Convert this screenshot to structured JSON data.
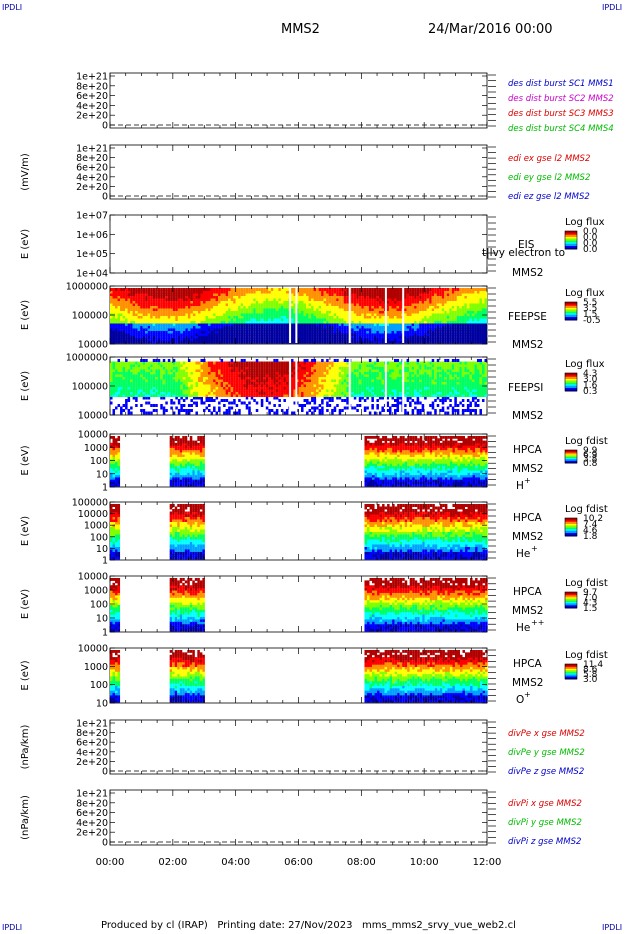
{
  "corner_marks": {
    "top_left": "IPDLI",
    "top_right": "IPDLI",
    "bottom_left": "IPDLI",
    "bottom_right": "IPDLI"
  },
  "header": {
    "title": "MMS2",
    "date": "24/Mar/2016 00:00"
  },
  "footer": {
    "text": "Produced by cl (IRAP)   Printing date: 27/Nov/2023   mms_mms2_srvy_vue_web2.cl"
  },
  "x_axis": {
    "ticks": [
      "00:00",
      "02:00",
      "04:00",
      "06:00",
      "08:00",
      "10:00",
      "12:00"
    ]
  },
  "panels": [
    {
      "id": "des-dist",
      "ylabel": "",
      "yticks": [
        "1e+21",
        "8e+20",
        "6e+20",
        "4e+20",
        "2e+20",
        "0"
      ],
      "legend": [
        {
          "text": "des dist burst SC1 MMS1",
          "color": "#0000cc"
        },
        {
          "text": "des dist burst SC2 MMS2",
          "color": "#cc00cc"
        },
        {
          "text": "des dist burst SC3 MMS3",
          "color": "#dd0000"
        },
        {
          "text": "des dist burst SC4 MMS4",
          "color": "#00bb00"
        }
      ]
    },
    {
      "id": "edi",
      "ylabel": "(mV/m)",
      "yticks": [
        "1e+21",
        "8e+20",
        "6e+20",
        "4e+20",
        "2e+20",
        "0"
      ],
      "legend": [
        {
          "text": "edi ex gse l2 MMS2",
          "color": "#dd0000"
        },
        {
          "text": "edi ey gse l2 MMS2",
          "color": "#00bb00"
        },
        {
          "text": "edi ez gse l2 MMS2",
          "color": "#0000cc"
        }
      ]
    },
    {
      "id": "eis",
      "ylabel": "E (eV)",
      "yticks": [
        "1e+07",
        "1e+06",
        "1e+05",
        "1e+04"
      ],
      "instrument": "EIS",
      "spacecraft": "MMS2",
      "extra": "t|lvy electron to",
      "colorbar": {
        "title": "Log flux",
        "ticks": [
          "0.0",
          "0.0",
          "0.0",
          "0.0"
        ]
      }
    },
    {
      "id": "feepse",
      "ylabel": "E (eV)",
      "yticks": [
        "1000000",
        "100000",
        "10000"
      ],
      "instrument": "FEEPSE",
      "spacecraft": "MMS2",
      "colorbar": {
        "title": "Log flux",
        "ticks": [
          "5.5",
          "3.5",
          "1.5",
          "-0.5"
        ]
      }
    },
    {
      "id": "feepsi",
      "ylabel": "E (eV)",
      "yticks": [
        "1000000",
        "100000",
        "10000"
      ],
      "instrument": "FEEPSI",
      "spacecraft": "MMS2",
      "colorbar": {
        "title": "Log flux",
        "ticks": [
          "4.3",
          "3.0",
          "1.6",
          "0.3"
        ]
      }
    },
    {
      "id": "hpca-h",
      "ylabel": "E (eV)",
      "yticks": [
        "10000",
        "1000",
        "100",
        "10",
        "1"
      ],
      "instrument": "HPCA",
      "spacecraft": "MMS2",
      "species": "H",
      "charge": "+",
      "colorbar": {
        "title": "Log fdist",
        "ticks": [
          "9.9",
          "6.9",
          "3.8",
          "0.8"
        ]
      }
    },
    {
      "id": "hpca-he",
      "ylabel": "E (eV)",
      "yticks": [
        "100000",
        "10000",
        "1000",
        "100",
        "10",
        "1"
      ],
      "instrument": "HPCA",
      "spacecraft": "MMS2",
      "species": "He",
      "charge": "+",
      "colorbar": {
        "title": "Log fdist",
        "ticks": [
          "10.2",
          "7.4",
          "4.6",
          "1.8"
        ]
      }
    },
    {
      "id": "hpca-he2",
      "ylabel": "E (eV)",
      "yticks": [
        "10000",
        "1000",
        "100",
        "10",
        "1"
      ],
      "instrument": "HPCA",
      "spacecraft": "MMS2",
      "species": "He",
      "charge": "++",
      "colorbar": {
        "title": "Log fdist",
        "ticks": [
          "9.7",
          "7.0",
          "4.3",
          "1.5"
        ]
      }
    },
    {
      "id": "hpca-o",
      "ylabel": "E (eV)",
      "yticks": [
        "10000",
        "1000",
        "100",
        "10"
      ],
      "instrument": "HPCA",
      "spacecraft": "MMS2",
      "species": "O",
      "charge": "+",
      "colorbar": {
        "title": "Log fdist",
        "ticks": [
          "11.4",
          "8.6",
          "5.8",
          "3.0"
        ]
      }
    },
    {
      "id": "divpe",
      "ylabel": "(nPa/km)",
      "yticks": [
        "1e+21",
        "8e+20",
        "6e+20",
        "4e+20",
        "2e+20",
        "0"
      ],
      "legend": [
        {
          "text": "divPe x gse MMS2",
          "color": "#dd0000"
        },
        {
          "text": "divPe y gse MMS2",
          "color": "#00bb00"
        },
        {
          "text": "divPe z gse MMS2",
          "color": "#0000cc"
        }
      ]
    },
    {
      "id": "divpi",
      "ylabel": "(nPa/km)",
      "yticks": [
        "1e+21",
        "8e+20",
        "6e+20",
        "4e+20",
        "2e+20",
        "0"
      ],
      "legend": [
        {
          "text": "divPi x gse MMS2",
          "color": "#dd0000"
        },
        {
          "text": "divPi y gse MMS2",
          "color": "#00bb00"
        },
        {
          "text": "divPi z gse MMS2",
          "color": "#0000cc"
        }
      ]
    }
  ],
  "chart_data": {
    "type": "heatmap",
    "time_range_hours": [
      0,
      12
    ],
    "colormap": [
      "#0000a0",
      "#0000ff",
      "#00a0ff",
      "#00ffff",
      "#00ff60",
      "#80ff00",
      "#ffff00",
      "#ff9000",
      "#ff0000",
      "#b00000"
    ],
    "spectrogram_coverage_hours": {
      "feepse": [
        [
          0,
          12
        ]
      ],
      "feepsi": [
        [
          0,
          12
        ]
      ],
      "hpca-h": [
        [
          0,
          0.25
        ],
        [
          1.9,
          3.0
        ],
        [
          8.1,
          12
        ]
      ],
      "hpca-he": [
        [
          0,
          0.25
        ],
        [
          1.9,
          3.0
        ],
        [
          8.1,
          12
        ]
      ],
      "hpca-he2": [
        [
          0,
          0.25
        ],
        [
          1.9,
          3.0
        ],
        [
          8.1,
          12
        ]
      ],
      "hpca-o": [
        [
          0,
          0.25
        ],
        [
          1.9,
          3.0
        ],
        [
          8.1,
          12
        ]
      ]
    },
    "zero_line_panels": [
      "des-dist",
      "edi",
      "divpe",
      "divpi"
    ]
  }
}
